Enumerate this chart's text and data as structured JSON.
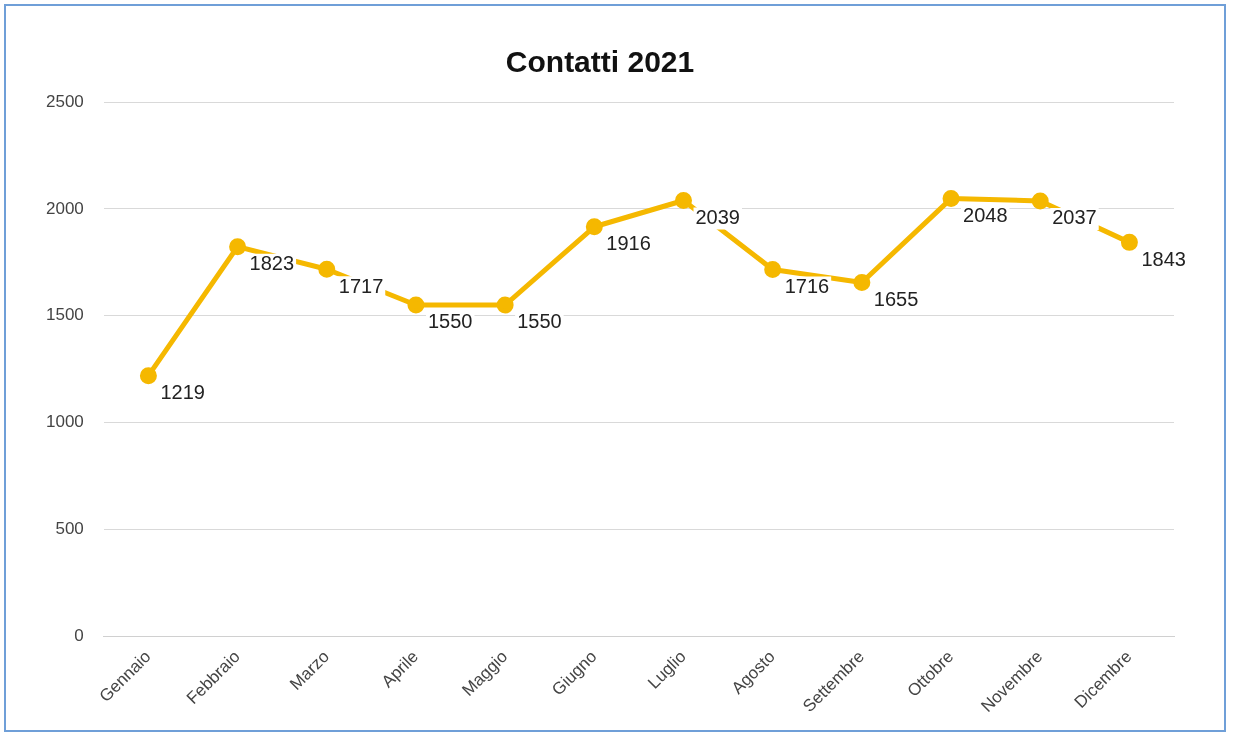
{
  "chart_data": {
    "type": "line",
    "title": "Contatti 2021",
    "categories": [
      "Gennaio",
      "Febbraio",
      "Marzo",
      "Aprile",
      "Maggio",
      "Giugno",
      "Luglio",
      "Agosto",
      "Settembre",
      "Ottobre",
      "Novembre",
      "Dicembre"
    ],
    "series": [
      {
        "color": "#f5b800",
        "values": [
          1219,
          1823,
          1717,
          1550,
          1550,
          1916,
          2039,
          1716,
          1655,
          2048,
          2037,
          1843
        ]
      }
    ],
    "ylim": [
      0,
      2500
    ],
    "yticks": [
      0,
      500,
      1000,
      1500,
      2000,
      2500
    ],
    "grid": "y",
    "legend": false,
    "marker": "circle",
    "line_style": "solid",
    "data_labels": true
  }
}
